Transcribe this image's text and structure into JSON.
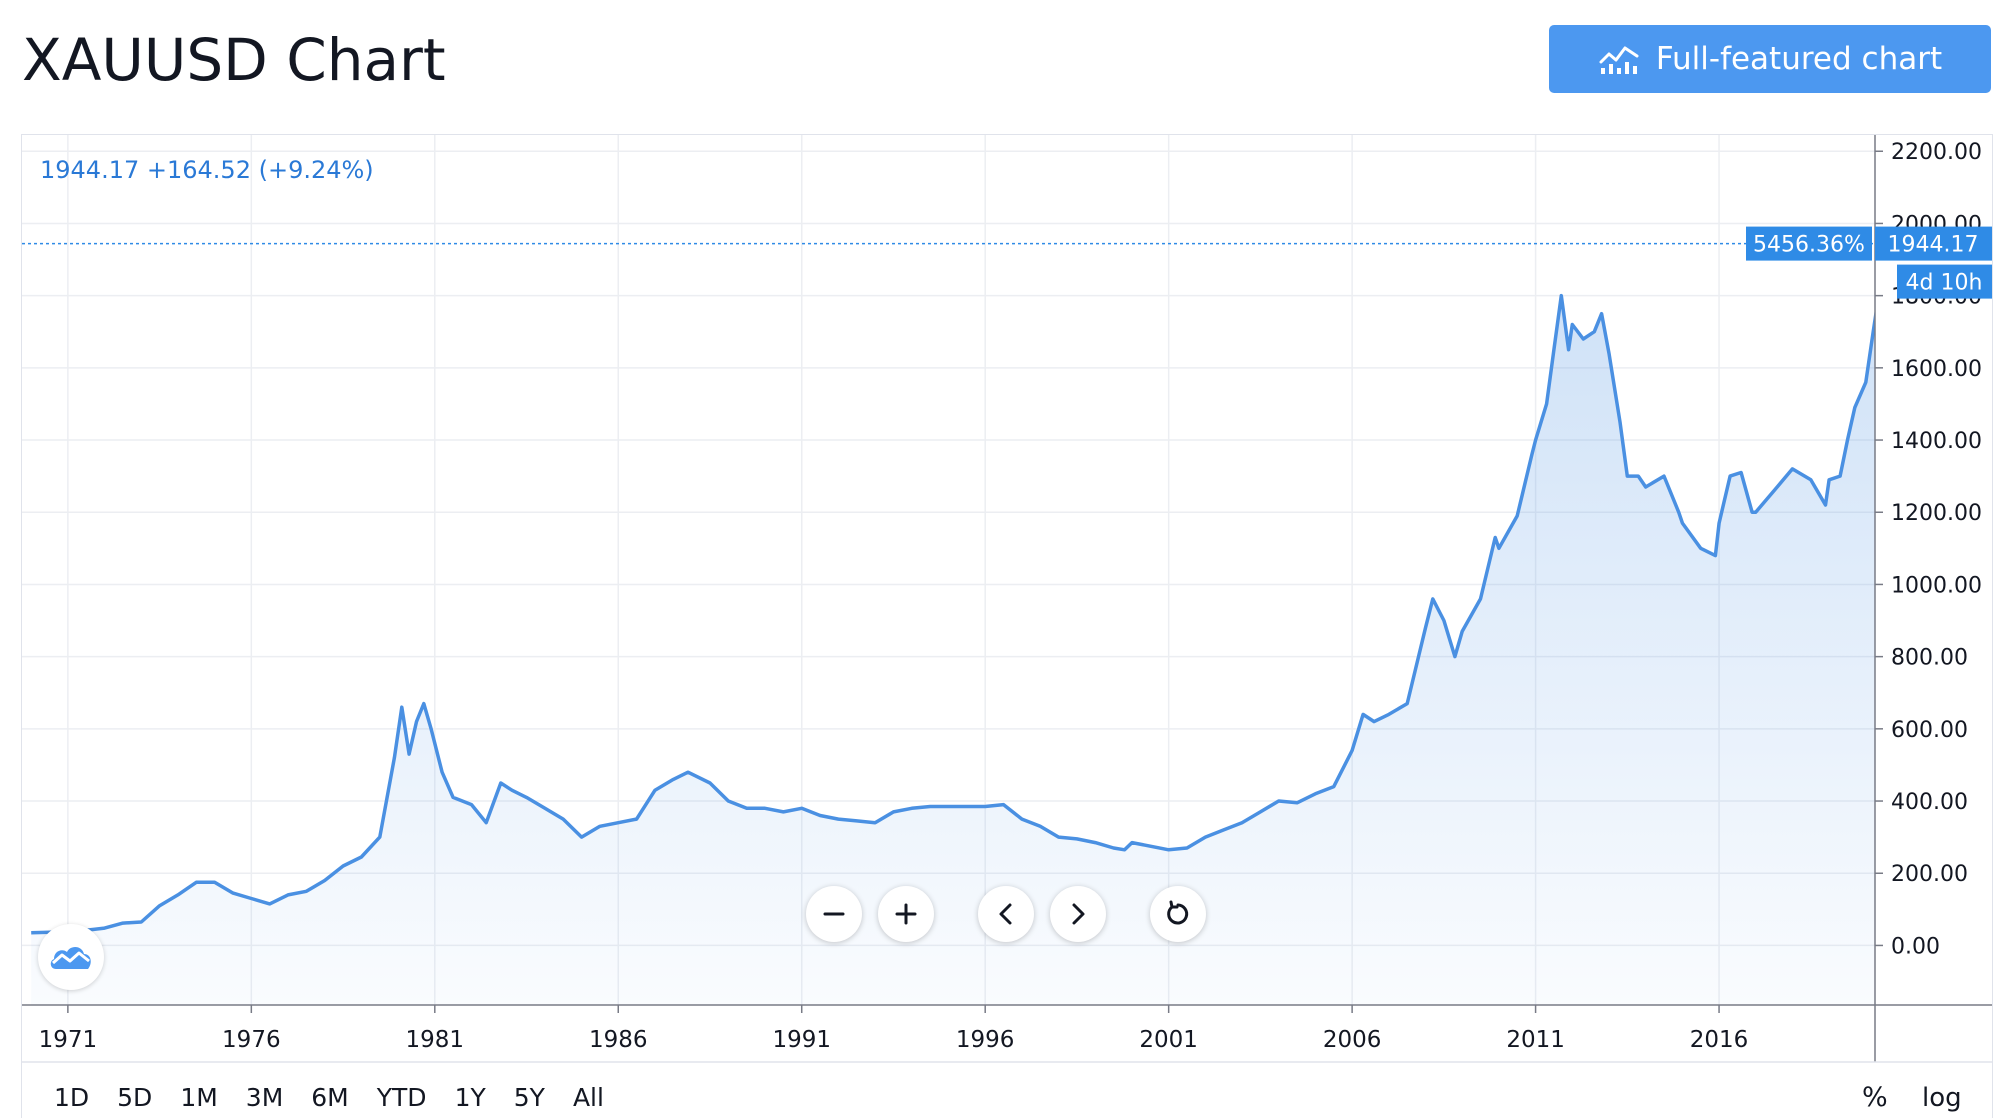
{
  "header": {
    "title": "XAUUSD Chart",
    "full_chart_label": "Full-featured chart"
  },
  "legend": {
    "text": "1944.17 +164.52 (+9.24%)"
  },
  "price_labels": {
    "percent": "5456.36%",
    "price": "1944.17",
    "countdown": "4d 10h"
  },
  "controls": {
    "zoom_out": "minus-icon",
    "zoom_in": "plus-icon",
    "scroll_left": "chevron-left-icon",
    "scroll_right": "chevron-right-icon",
    "reset": "reset-icon"
  },
  "ranges": [
    "1D",
    "5D",
    "1M",
    "3M",
    "6M",
    "YTD",
    "1Y",
    "5Y",
    "All"
  ],
  "scale_buttons": {
    "percent": "%",
    "log": "log"
  },
  "colors": {
    "line": "#4a90e2",
    "accent": "#4c98f0",
    "label_bg": "#2f8be6"
  },
  "chart_data": {
    "type": "area",
    "title": "XAUUSD Chart",
    "xlabel": "",
    "ylabel": "",
    "ylim": [
      -165,
      2245
    ],
    "xlim": [
      1969.75,
      2020.25
    ],
    "y_ticks": [
      0,
      200,
      400,
      600,
      800,
      1000,
      1200,
      1400,
      1600,
      1800,
      2000,
      2200
    ],
    "y_tick_labels": [
      "0.00",
      "200.00",
      "400.00",
      "600.00",
      "800.00",
      "1000.00",
      "1200.00",
      "1400.00",
      "1600.00",
      "1800.00",
      "2000.00",
      "2200.00"
    ],
    "x_ticks": [
      1971,
      1976,
      1981,
      1986,
      1991,
      1996,
      2001,
      2006,
      2011,
      2016
    ],
    "x_tick_labels": [
      "1971",
      "1976",
      "1981",
      "1986",
      "1991",
      "1996",
      "2001",
      "2006",
      "2011",
      "2016"
    ],
    "grid": true,
    "last_value": 1944.17,
    "series": [
      {
        "x": [
          1970.0,
          1971.0,
          1971.5,
          1972.0,
          1972.5,
          1973.0,
          1973.5,
          1974.0,
          1974.5,
          1975.0,
          1975.5,
          1976.0,
          1976.5,
          1977.0,
          1977.5,
          1978.0,
          1978.5,
          1979.0,
          1979.5,
          1979.9,
          1980.1,
          1980.3,
          1980.5,
          1980.7,
          1980.9,
          1981.2,
          1981.5,
          1982.0,
          1982.4,
          1982.8,
          1983.1,
          1983.5,
          1984.0,
          1984.5,
          1985.0,
          1985.5,
          1986.0,
          1986.5,
          1987.0,
          1987.5,
          1987.9,
          1988.5,
          1989.0,
          1989.5,
          1990.0,
          1990.5,
          1991.0,
          1991.5,
          1992.0,
          1992.5,
          1993.0,
          1993.5,
          1994.0,
          1994.5,
          1995.0,
          1995.5,
          1996.0,
          1996.5,
          1997.0,
          1997.5,
          1998.0,
          1998.5,
          1999.0,
          1999.5,
          1999.8,
          2000.0,
          2000.5,
          2001.0,
          2001.5,
          2002.0,
          2002.5,
          2003.0,
          2003.5,
          2004.0,
          2004.5,
          2005.0,
          2005.5,
          2006.0,
          2006.3,
          2006.6,
          2007.0,
          2007.5,
          2008.0,
          2008.2,
          2008.5,
          2008.8,
          2009.0,
          2009.5,
          2009.9,
          2010.0,
          2010.5,
          2010.9,
          2011.0,
          2011.3,
          2011.5,
          2011.7,
          2011.9,
          2012.0,
          2012.3,
          2012.6,
          2012.8,
          2013.0,
          2013.3,
          2013.5,
          2013.8,
          2014.0,
          2014.5,
          2014.9,
          2015.0,
          2015.5,
          2015.9,
          2016.0,
          2016.3,
          2016.6,
          2016.9,
          2017.0,
          2017.5,
          2018.0,
          2018.5,
          2018.9,
          2019.0,
          2019.3,
          2019.5,
          2019.7,
          2020.0,
          2020.2,
          2020.35,
          2020.45
        ],
        "values": [
          35,
          38,
          42,
          48,
          62,
          65,
          110,
          140,
          175,
          175,
          145,
          130,
          115,
          140,
          150,
          180,
          220,
          245,
          300,
          520,
          660,
          530,
          620,
          670,
          600,
          480,
          410,
          390,
          340,
          450,
          430,
          410,
          380,
          350,
          300,
          330,
          340,
          350,
          430,
          460,
          480,
          450,
          400,
          380,
          380,
          370,
          380,
          360,
          350,
          345,
          340,
          370,
          380,
          385,
          385,
          385,
          385,
          390,
          350,
          330,
          300,
          295,
          285,
          270,
          265,
          285,
          275,
          265,
          270,
          300,
          320,
          340,
          370,
          400,
          395,
          420,
          440,
          540,
          640,
          620,
          640,
          670,
          880,
          960,
          900,
          800,
          870,
          960,
          1130,
          1100,
          1190,
          1360,
          1400,
          1500,
          1650,
          1800,
          1650,
          1720,
          1680,
          1700,
          1750,
          1640,
          1450,
          1300,
          1300,
          1270,
          1300,
          1200,
          1170,
          1100,
          1080,
          1170,
          1300,
          1310,
          1200,
          1200,
          1260,
          1320,
          1290,
          1220,
          1290,
          1300,
          1400,
          1490,
          1560,
          1700,
          1800,
          1944.17
        ]
      }
    ]
  }
}
